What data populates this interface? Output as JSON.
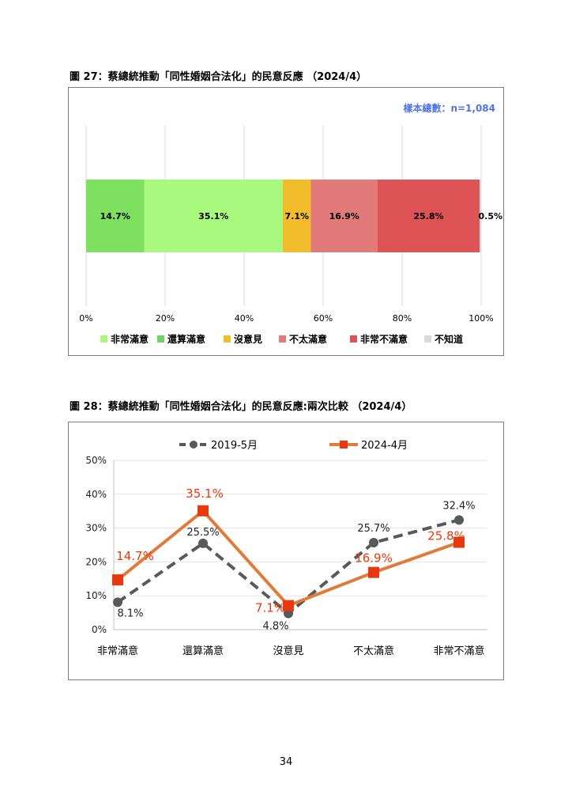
{
  "figure27": {
    "title": "圖 27：蔡總統推動「同性婚姻合法化」的民意反應 （2024/4）",
    "sample_note": "樣本總數：n=1,084",
    "axis_ticks": [
      "0%",
      "20%",
      "40%",
      "60%",
      "80%",
      "100%"
    ],
    "segments": [
      {
        "label": "非常滿意",
        "value": 14.7,
        "text": "14.7%",
        "color": "#7ee05f"
      },
      {
        "label": "還算滿意",
        "value": 35.1,
        "text": "35.1%",
        "color": "#a9f97f"
      },
      {
        "label": "沒意見",
        "value": 7.1,
        "text": "7.1%",
        "color": "#f1bd2b"
      },
      {
        "label": "不太滿意",
        "value": 16.9,
        "text": "16.9%",
        "color": "#e27a7a"
      },
      {
        "label": "非常不滿意",
        "value": 25.8,
        "text": "25.8%",
        "color": "#de5356"
      },
      {
        "label": "不知道",
        "value": 0.5,
        "text": "0.5%",
        "color": "#d9d9d9"
      }
    ],
    "legend": [
      {
        "label": "非常滿意",
        "color": "#a9f97f"
      },
      {
        "label": "還算滿意",
        "color": "#6fd36a"
      },
      {
        "label": "沒意見",
        "color": "#f1bd2b"
      },
      {
        "label": "不太滿意",
        "color": "#e27a7a"
      },
      {
        "label": "非常不滿意",
        "color": "#de5356"
      },
      {
        "label": "不知道",
        "color": "#d9d9d9"
      }
    ]
  },
  "figure28": {
    "title": "圖 28：蔡總統推動「同性婚姻合法化」的民意反應:兩次比較 （2024/4）"
  },
  "chart_data": [
    {
      "type": "bar",
      "orientation": "horizontal-stacked",
      "categories": [
        "非常滿意",
        "還算滿意",
        "沒意見",
        "不太滿意",
        "非常不滿意",
        "不知道"
      ],
      "values": [
        14.7,
        35.1,
        7.1,
        16.9,
        25.8,
        0.5
      ],
      "xlim": [
        0,
        100
      ],
      "grid": true,
      "legend_position": "bottom"
    },
    {
      "type": "line",
      "categories": [
        "非常滿意",
        "還算滿意",
        "沒意見",
        "不太滿意",
        "非常不滿意"
      ],
      "y_ticks": [
        "0%",
        "10%",
        "20%",
        "30%",
        "40%",
        "50%"
      ],
      "ylim": [
        0,
        50
      ],
      "grid": true,
      "legend_position": "top",
      "series": [
        {
          "name": "2019-5月",
          "values": [
            8.1,
            25.5,
            4.8,
            25.7,
            32.4
          ],
          "labels": [
            "8.1%",
            "25.5%",
            "4.8%",
            "25.7%",
            "32.4%"
          ],
          "color": "#595959",
          "style": "dashed"
        },
        {
          "name": "2024-4月",
          "values": [
            14.7,
            35.1,
            7.1,
            16.9,
            25.8
          ],
          "labels": [
            "14.7%",
            "35.1%",
            "7.1%",
            "16.9%",
            "25.8%"
          ],
          "color": "#e07b39",
          "marker_color": "#e8380d",
          "label_color": "#e8380d"
        }
      ]
    }
  ],
  "page_number": "34"
}
